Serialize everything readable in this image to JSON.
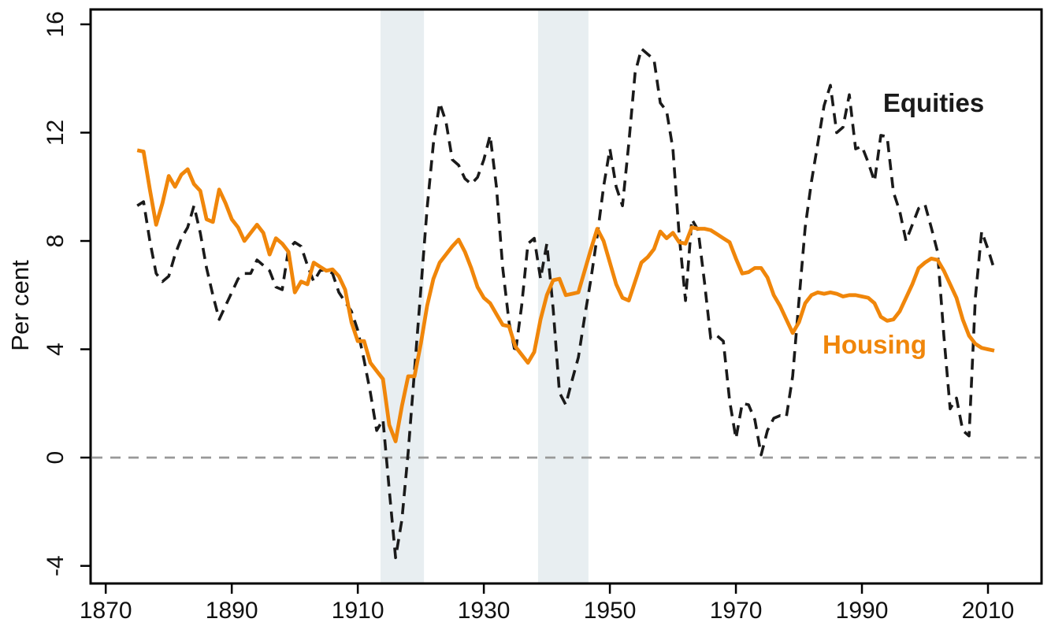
{
  "chart_data": {
    "type": "line",
    "title": "",
    "xlabel": "",
    "ylabel": "Per cent",
    "xlim": [
      1867.6,
      2018.5
    ],
    "ylim": [
      -4.65,
      16.55
    ],
    "x_ticks": [
      1870,
      1890,
      1910,
      1930,
      1950,
      1970,
      1990,
      2010
    ],
    "y_ticks": [
      -4,
      0,
      4,
      8,
      12,
      16
    ],
    "grid": false,
    "zero_reference_line": 0,
    "legend_position": "annotated-inline",
    "shaded_bands": [
      {
        "from": 1913.6,
        "to": 1920.5
      },
      {
        "from": 1938.6,
        "to": 1946.6
      }
    ],
    "band_color": "#e8eef1",
    "zero_line_color": "#999999",
    "series": [
      {
        "name": "Equities",
        "style": "dashed",
        "color": "#1a1a1a",
        "points": [
          [
            1875,
            9.3
          ],
          [
            1876,
            9.45
          ],
          [
            1877,
            8.0
          ],
          [
            1878,
            6.8
          ],
          [
            1879,
            6.5
          ],
          [
            1880,
            6.7
          ],
          [
            1881,
            7.5
          ],
          [
            1882,
            8.1
          ],
          [
            1883,
            8.5
          ],
          [
            1884,
            9.3
          ],
          [
            1885,
            8.3
          ],
          [
            1886,
            7.0
          ],
          [
            1887,
            6.0
          ],
          [
            1888,
            5.1
          ],
          [
            1889,
            5.6
          ],
          [
            1890,
            6.1
          ],
          [
            1891,
            6.6
          ],
          [
            1892,
            6.8
          ],
          [
            1893,
            6.8
          ],
          [
            1894,
            7.3
          ],
          [
            1895,
            7.1
          ],
          [
            1896,
            6.9
          ],
          [
            1897,
            6.3
          ],
          [
            1898,
            6.2
          ],
          [
            1899,
            7.7
          ],
          [
            1900,
            7.95
          ],
          [
            1901,
            7.8
          ],
          [
            1902,
            7.1
          ],
          [
            1903,
            6.5
          ],
          [
            1904,
            6.9
          ],
          [
            1905,
            6.95
          ],
          [
            1906,
            6.8
          ],
          [
            1907,
            6.1
          ],
          [
            1908,
            5.75
          ],
          [
            1909,
            5.4
          ],
          [
            1910,
            4.7
          ],
          [
            1911,
            3.6
          ],
          [
            1912,
            2.4
          ],
          [
            1913,
            1.0
          ],
          [
            1914,
            1.4
          ],
          [
            1915,
            -1.2
          ],
          [
            1916,
            -3.7
          ],
          [
            1917,
            -2.3
          ],
          [
            1918,
            0.2
          ],
          [
            1919,
            3.2
          ],
          [
            1920,
            6.2
          ],
          [
            1921,
            9.2
          ],
          [
            1922,
            11.6
          ],
          [
            1923,
            13.1
          ],
          [
            1924,
            12.4
          ],
          [
            1925,
            11.0
          ],
          [
            1926,
            10.8
          ],
          [
            1927,
            10.3
          ],
          [
            1928,
            10.1
          ],
          [
            1929,
            10.35
          ],
          [
            1930,
            11.0
          ],
          [
            1931,
            11.9
          ],
          [
            1932,
            10.0
          ],
          [
            1933,
            7.0
          ],
          [
            1934,
            5.0
          ],
          [
            1935,
            3.85
          ],
          [
            1936,
            5.6
          ],
          [
            1937,
            7.9
          ],
          [
            1938,
            8.1
          ],
          [
            1939,
            6.6
          ],
          [
            1940,
            7.9
          ],
          [
            1941,
            5.5
          ],
          [
            1942,
            2.4
          ],
          [
            1943,
            1.95
          ],
          [
            1944,
            2.85
          ],
          [
            1945,
            3.7
          ],
          [
            1946,
            5.2
          ],
          [
            1947,
            6.6
          ],
          [
            1948,
            8.2
          ],
          [
            1949,
            10.0
          ],
          [
            1950,
            11.4
          ],
          [
            1951,
            10.0
          ],
          [
            1952,
            9.3
          ],
          [
            1953,
            11.6
          ],
          [
            1954,
            14.2
          ],
          [
            1955,
            15.1
          ],
          [
            1956,
            14.9
          ],
          [
            1957,
            14.7
          ],
          [
            1958,
            13.1
          ],
          [
            1959,
            12.8
          ],
          [
            1960,
            11.4
          ],
          [
            1961,
            8.2
          ],
          [
            1962,
            5.8
          ],
          [
            1963,
            8.8
          ],
          [
            1964,
            8.4
          ],
          [
            1965,
            6.5
          ],
          [
            1966,
            4.4
          ],
          [
            1967,
            4.5
          ],
          [
            1968,
            4.3
          ],
          [
            1969,
            2.1
          ],
          [
            1970,
            0.7
          ],
          [
            1971,
            2.0
          ],
          [
            1972,
            1.95
          ],
          [
            1973,
            1.4
          ],
          [
            1974,
            0.1
          ],
          [
            1975,
            1.0
          ],
          [
            1976,
            1.45
          ],
          [
            1977,
            1.55
          ],
          [
            1978,
            1.5
          ],
          [
            1979,
            3.0
          ],
          [
            1980,
            5.8
          ],
          [
            1981,
            8.5
          ],
          [
            1982,
            10.2
          ],
          [
            1983,
            11.6
          ],
          [
            1984,
            13.0
          ],
          [
            1985,
            13.75
          ],
          [
            1986,
            12.0
          ],
          [
            1987,
            12.2
          ],
          [
            1988,
            13.4
          ],
          [
            1989,
            11.4
          ],
          [
            1990,
            11.5
          ],
          [
            1991,
            10.9
          ],
          [
            1992,
            10.2
          ],
          [
            1993,
            11.9
          ],
          [
            1994,
            11.85
          ],
          [
            1995,
            9.8
          ],
          [
            1996,
            9.1
          ],
          [
            1997,
            8.0
          ],
          [
            1998,
            8.6
          ],
          [
            1999,
            9.2
          ],
          [
            2000,
            9.35
          ],
          [
            2001,
            8.5
          ],
          [
            2002,
            7.6
          ],
          [
            2003,
            4.5
          ],
          [
            2004,
            1.8
          ],
          [
            2005,
            2.2
          ],
          [
            2006,
            1.0
          ],
          [
            2007,
            0.8
          ],
          [
            2008,
            5.9
          ],
          [
            2009,
            8.35
          ],
          [
            2010,
            7.7
          ],
          [
            2011,
            6.95
          ]
        ]
      },
      {
        "name": "Housing",
        "style": "solid",
        "color": "#f0860a",
        "points": [
          [
            1875,
            11.35
          ],
          [
            1876,
            11.3
          ],
          [
            1877,
            9.9
          ],
          [
            1878,
            8.6
          ],
          [
            1879,
            9.4
          ],
          [
            1880,
            10.4
          ],
          [
            1881,
            10.0
          ],
          [
            1882,
            10.45
          ],
          [
            1883,
            10.65
          ],
          [
            1884,
            10.1
          ],
          [
            1885,
            9.85
          ],
          [
            1886,
            8.8
          ],
          [
            1887,
            8.7
          ],
          [
            1888,
            9.9
          ],
          [
            1889,
            9.4
          ],
          [
            1890,
            8.8
          ],
          [
            1891,
            8.5
          ],
          [
            1892,
            8.0
          ],
          [
            1893,
            8.3
          ],
          [
            1894,
            8.6
          ],
          [
            1895,
            8.3
          ],
          [
            1896,
            7.5
          ],
          [
            1897,
            8.1
          ],
          [
            1898,
            7.9
          ],
          [
            1899,
            7.6
          ],
          [
            1900,
            6.1
          ],
          [
            1901,
            6.5
          ],
          [
            1902,
            6.4
          ],
          [
            1903,
            7.2
          ],
          [
            1904,
            7.05
          ],
          [
            1905,
            6.9
          ],
          [
            1906,
            6.95
          ],
          [
            1907,
            6.7
          ],
          [
            1908,
            6.2
          ],
          [
            1909,
            5.0
          ],
          [
            1910,
            4.3
          ],
          [
            1911,
            4.3
          ],
          [
            1912,
            3.5
          ],
          [
            1913,
            3.2
          ],
          [
            1914,
            2.9
          ],
          [
            1915,
            1.2
          ],
          [
            1916,
            0.6
          ],
          [
            1917,
            1.9
          ],
          [
            1918,
            3.0
          ],
          [
            1919,
            3.0
          ],
          [
            1920,
            4.2
          ],
          [
            1921,
            5.6
          ],
          [
            1922,
            6.6
          ],
          [
            1923,
            7.2
          ],
          [
            1924,
            7.5
          ],
          [
            1925,
            7.8
          ],
          [
            1926,
            8.05
          ],
          [
            1927,
            7.6
          ],
          [
            1928,
            7.0
          ],
          [
            1929,
            6.3
          ],
          [
            1930,
            5.9
          ],
          [
            1931,
            5.7
          ],
          [
            1932,
            5.3
          ],
          [
            1933,
            4.9
          ],
          [
            1934,
            4.85
          ],
          [
            1935,
            4.1
          ],
          [
            1936,
            3.8
          ],
          [
            1937,
            3.5
          ],
          [
            1938,
            3.9
          ],
          [
            1939,
            5.1
          ],
          [
            1940,
            6.0
          ],
          [
            1941,
            6.55
          ],
          [
            1942,
            6.6
          ],
          [
            1943,
            6.0
          ],
          [
            1944,
            6.05
          ],
          [
            1945,
            6.1
          ],
          [
            1946,
            6.9
          ],
          [
            1947,
            7.7
          ],
          [
            1948,
            8.45
          ],
          [
            1949,
            8.0
          ],
          [
            1950,
            7.2
          ],
          [
            1951,
            6.4
          ],
          [
            1952,
            5.9
          ],
          [
            1953,
            5.8
          ],
          [
            1954,
            6.5
          ],
          [
            1955,
            7.2
          ],
          [
            1956,
            7.4
          ],
          [
            1957,
            7.7
          ],
          [
            1958,
            8.35
          ],
          [
            1959,
            8.1
          ],
          [
            1960,
            8.3
          ],
          [
            1961,
            7.95
          ],
          [
            1962,
            7.9
          ],
          [
            1963,
            8.5
          ],
          [
            1964,
            8.45
          ],
          [
            1965,
            8.45
          ],
          [
            1966,
            8.4
          ],
          [
            1967,
            8.25
          ],
          [
            1968,
            8.1
          ],
          [
            1969,
            7.95
          ],
          [
            1970,
            7.35
          ],
          [
            1971,
            6.8
          ],
          [
            1972,
            6.85
          ],
          [
            1973,
            7.0
          ],
          [
            1974,
            7.0
          ],
          [
            1975,
            6.65
          ],
          [
            1976,
            6.0
          ],
          [
            1977,
            5.6
          ],
          [
            1978,
            5.1
          ],
          [
            1979,
            4.6
          ],
          [
            1980,
            5.0
          ],
          [
            1981,
            5.7
          ],
          [
            1982,
            6.0
          ],
          [
            1983,
            6.1
          ],
          [
            1984,
            6.05
          ],
          [
            1985,
            6.1
          ],
          [
            1986,
            6.05
          ],
          [
            1987,
            5.95
          ],
          [
            1988,
            6.0
          ],
          [
            1989,
            6.0
          ],
          [
            1990,
            5.95
          ],
          [
            1991,
            5.9
          ],
          [
            1992,
            5.7
          ],
          [
            1993,
            5.2
          ],
          [
            1994,
            5.05
          ],
          [
            1995,
            5.1
          ],
          [
            1996,
            5.4
          ],
          [
            1997,
            5.9
          ],
          [
            1998,
            6.4
          ],
          [
            1999,
            7.0
          ],
          [
            2000,
            7.2
          ],
          [
            2001,
            7.35
          ],
          [
            2002,
            7.3
          ],
          [
            2003,
            6.9
          ],
          [
            2004,
            6.4
          ],
          [
            2005,
            5.9
          ],
          [
            2006,
            5.1
          ],
          [
            2007,
            4.5
          ],
          [
            2008,
            4.2
          ],
          [
            2009,
            4.05
          ],
          [
            2010,
            4.0
          ],
          [
            2011,
            3.95
          ]
        ]
      }
    ]
  }
}
